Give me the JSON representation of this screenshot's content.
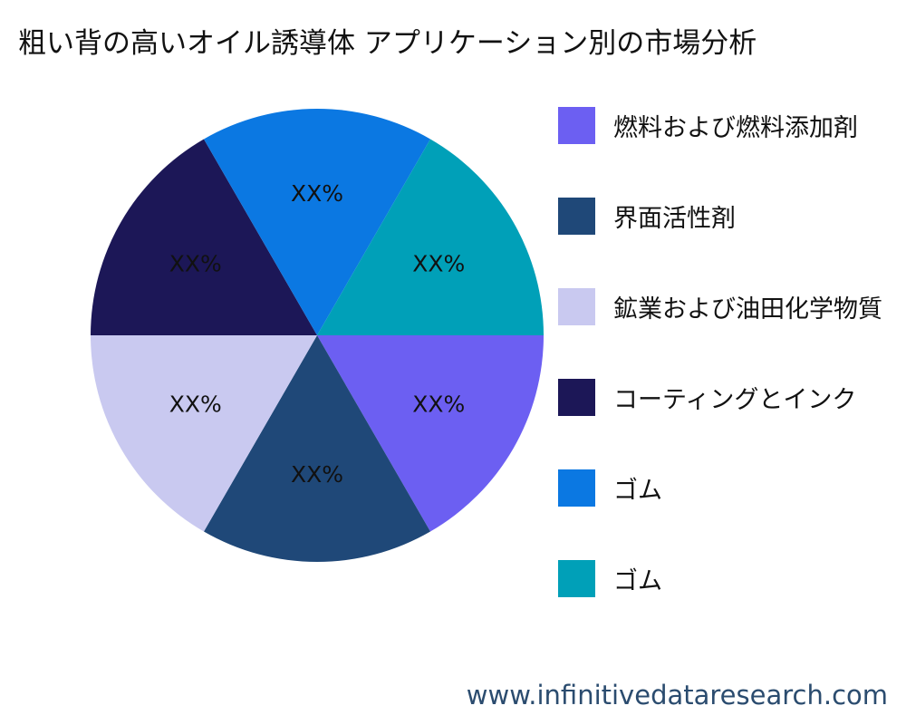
{
  "chart_data": {
    "type": "pie",
    "title": "粗い背の高いオイル誘導体 アプリケーション別の市場分析",
    "slices": [
      {
        "name": "燃料および燃料添加剤",
        "value": 16.67,
        "label": "XX%",
        "color": "#6c5ff2"
      },
      {
        "name": "界面活性剤",
        "value": 16.67,
        "label": "XX%",
        "color": "#1f4878"
      },
      {
        "name": "鉱業および油田化学物質",
        "value": 16.67,
        "label": "XX%",
        "color": "#c9c9f0"
      },
      {
        "name": "コーティングとインク",
        "value": 16.67,
        "label": "XX%",
        "color": "#1c1757"
      },
      {
        "name": "ゴム",
        "value": 16.67,
        "label": "XX%",
        "color": "#0b78e2"
      },
      {
        "name": "ゴム",
        "value": 16.67,
        "label": "XX%",
        "color": "#00a0b8"
      }
    ],
    "legend_position": "right"
  },
  "footer": {
    "source": "www.infinitivedataresearch.com"
  }
}
